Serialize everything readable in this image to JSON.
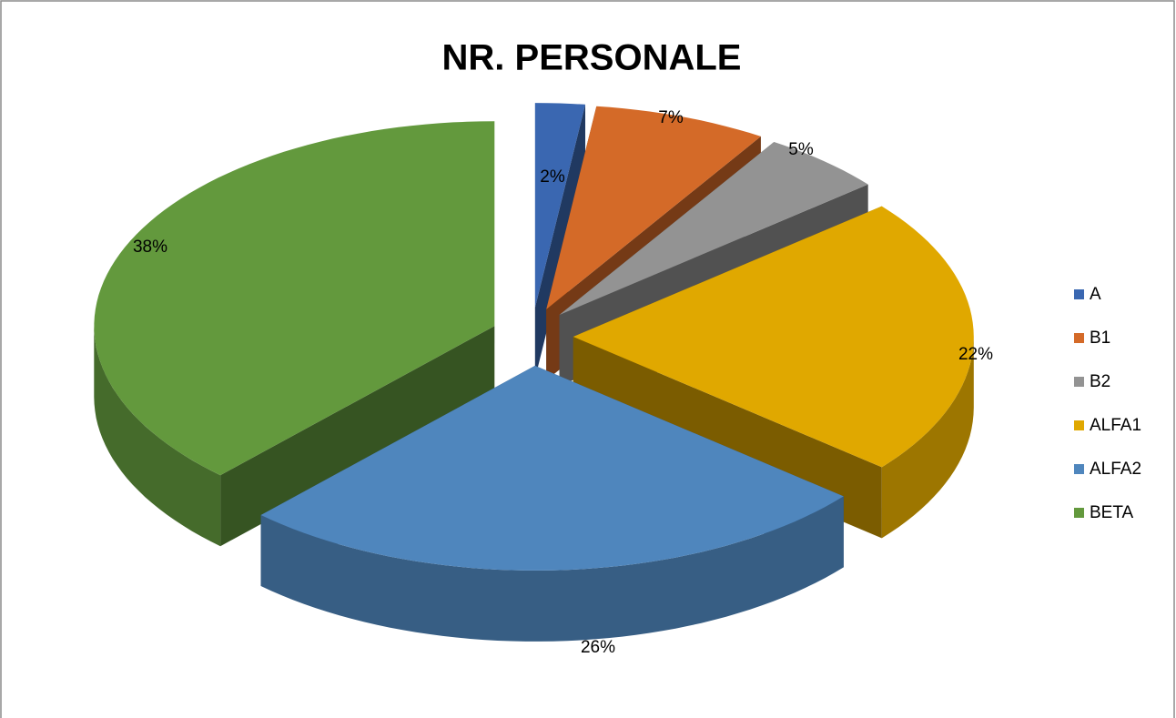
{
  "chart_data": {
    "type": "pie",
    "title": "NR. PERSONALE",
    "categories": [
      "A",
      "B1",
      "B2",
      "ALFA1",
      "ALFA2",
      "BETA"
    ],
    "values": [
      2,
      7,
      5,
      22,
      26,
      38
    ],
    "value_labels": [
      "2%",
      "7%",
      "5%",
      "22%",
      "26%",
      "38%"
    ],
    "colors": [
      "#3a67b1",
      "#d46a28",
      "#939393",
      "#e0a800",
      "#4f86bd",
      "#63993d"
    ],
    "legend": "right"
  }
}
